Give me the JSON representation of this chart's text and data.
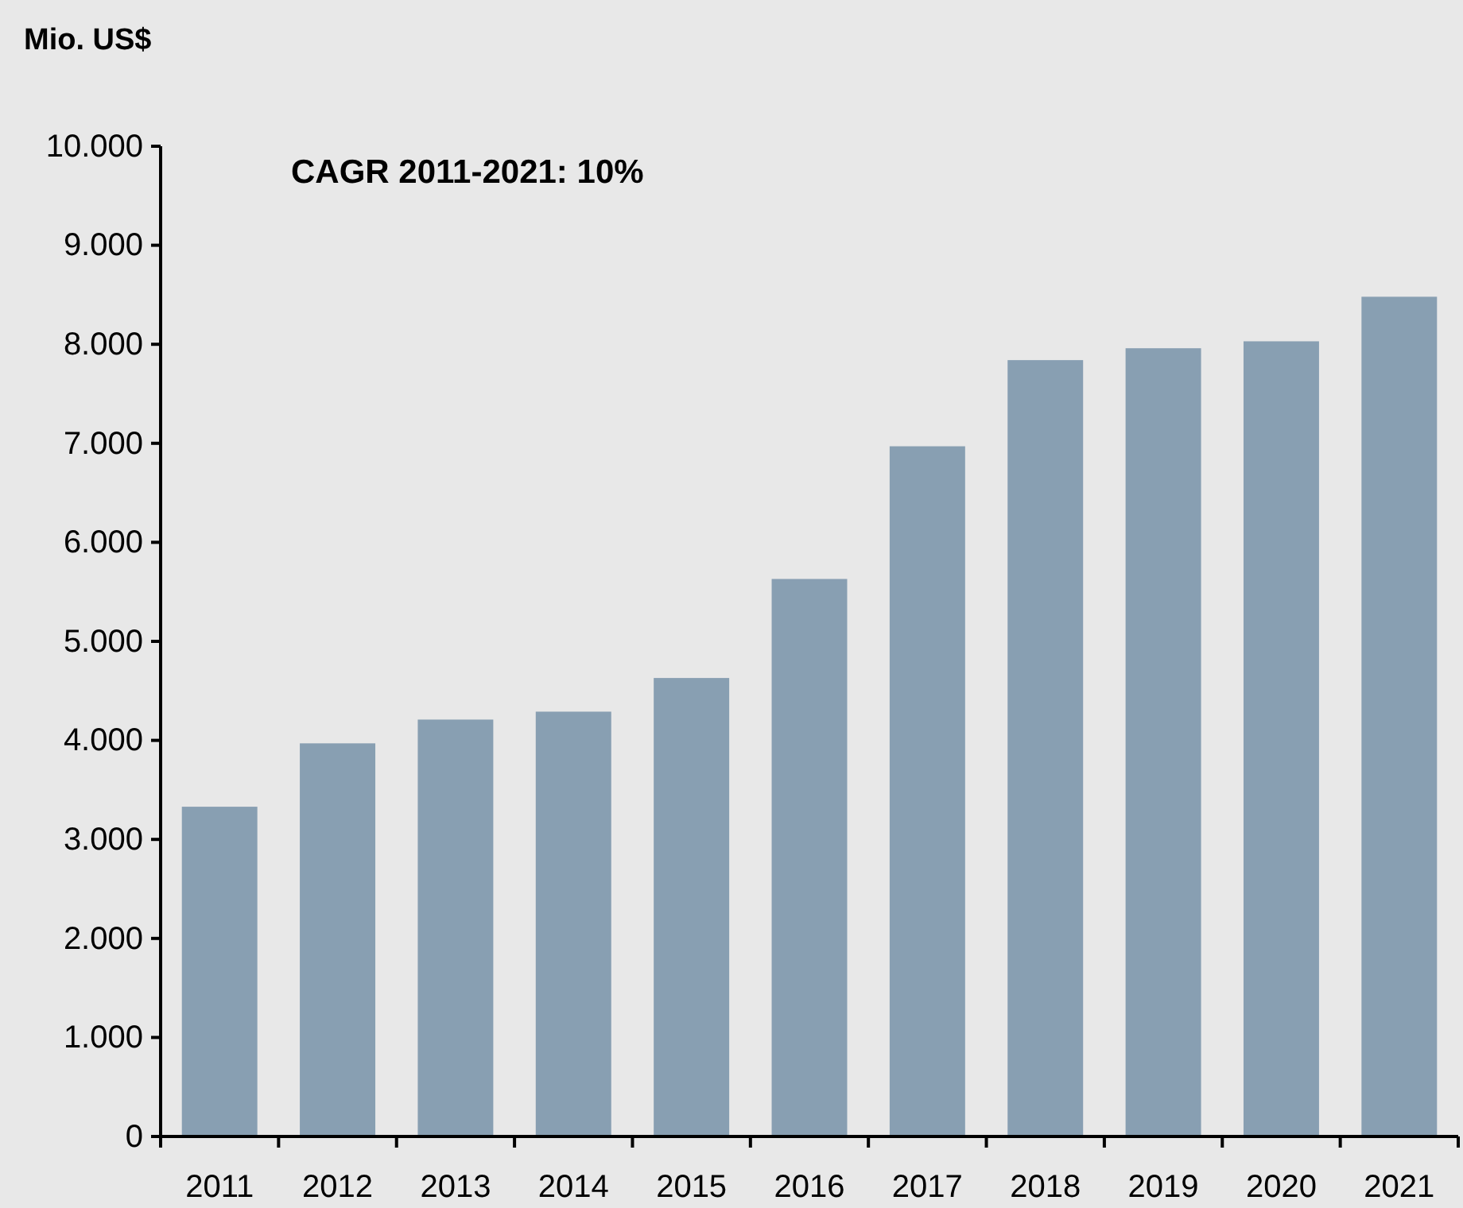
{
  "chart_data": {
    "type": "bar",
    "ylabel": "Mio. US$",
    "annotations": [
      "CAGR 2011-2021: 10%"
    ],
    "categories": [
      "2011",
      "2012",
      "2013",
      "2014",
      "2015",
      "2016",
      "2017",
      "2018",
      "2019",
      "2020",
      "2021"
    ],
    "values": [
      3330,
      3970,
      4210,
      4290,
      4630,
      5630,
      6970,
      7840,
      7960,
      8030,
      8480
    ],
    "color": "#889fb2",
    "ylim": [
      0,
      10000
    ],
    "yticks": [
      {
        "value": 0,
        "label": "0"
      },
      {
        "value": 1000,
        "label": "1.000"
      },
      {
        "value": 2000,
        "label": "2.000"
      },
      {
        "value": 3000,
        "label": "3.000"
      },
      {
        "value": 4000,
        "label": "4.000"
      },
      {
        "value": 5000,
        "label": "5.000"
      },
      {
        "value": 6000,
        "label": "6.000"
      },
      {
        "value": 7000,
        "label": "7.000"
      },
      {
        "value": 8000,
        "label": "8.000"
      },
      {
        "value": 9000,
        "label": "9.000"
      },
      {
        "value": 10000,
        "label": "10.000"
      }
    ]
  }
}
